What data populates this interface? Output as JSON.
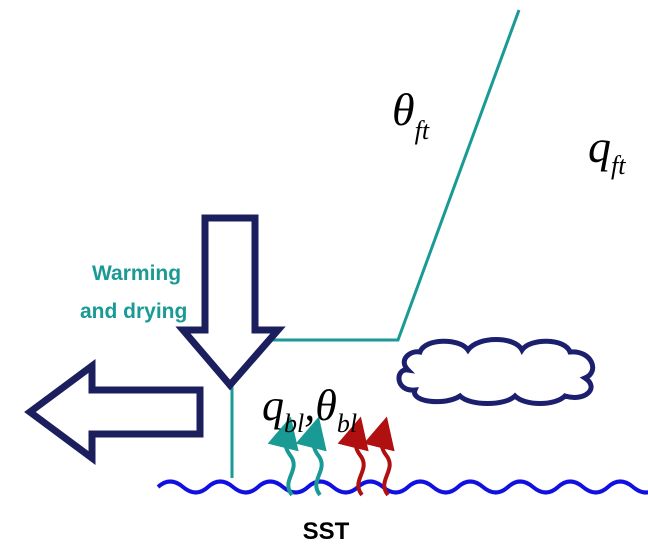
{
  "labels": {
    "theta_ft": {
      "symbol": "θ",
      "subscript": "ft"
    },
    "q_ft": {
      "symbol": "q",
      "subscript": "ft"
    },
    "boundary_layer": {
      "q_symbol": "q",
      "q_subscript": "bl",
      "separator": ",",
      "theta_symbol": "θ",
      "theta_subscript": "bl"
    },
    "warming": [
      "Warming",
      "and drying"
    ],
    "sst": "SST"
  }
}
